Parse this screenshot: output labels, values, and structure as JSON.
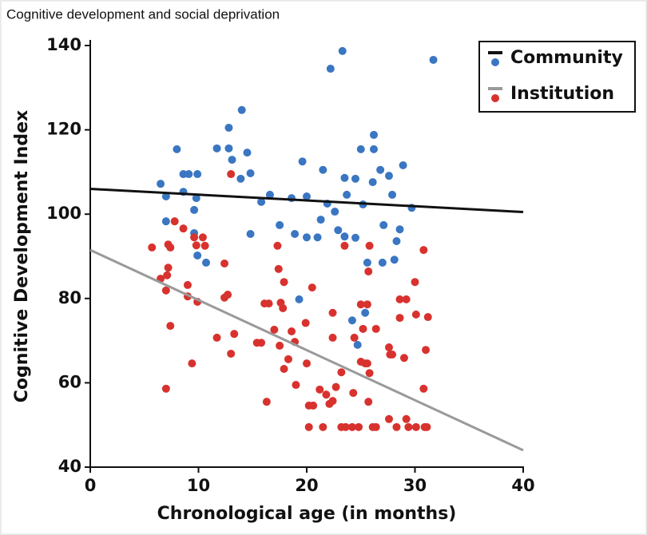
{
  "chart_data": {
    "type": "scatter",
    "title": "Cognitive development and social deprivation",
    "xlabel": "Chronological age (in months)",
    "ylabel": "Cognitive Development Index",
    "xlim": [
      0,
      40
    ],
    "ylim": [
      40,
      140
    ],
    "xticks": [
      0,
      10,
      20,
      30,
      40
    ],
    "yticks": [
      40,
      60,
      80,
      100,
      120,
      140
    ],
    "legend": "upper right",
    "series": [
      {
        "name": "Community",
        "color": "#3a76c2",
        "trend_color": "#111111",
        "trend_x": [
          0,
          40
        ],
        "trend_y": [
          106,
          100.5
        ],
        "x": [
          6.5,
          7.0,
          8.0,
          7.0,
          8.6,
          9.1,
          8.6,
          9.9,
          9.8,
          9.6,
          9.6,
          9.9,
          10.7,
          11.7,
          12.8,
          12.8,
          13.1,
          14.0,
          13.9,
          14.5,
          14.8,
          14.8,
          15.8,
          16.6,
          17.5,
          18.6,
          18.9,
          19.3,
          19.6,
          20.0,
          20.0,
          21.0,
          21.3,
          21.5,
          21.9,
          22.2,
          22.6,
          22.9,
          23.3,
          23.5,
          23.5,
          23.7,
          24.2,
          24.5,
          24.5,
          24.7,
          25.0,
          25.2,
          25.4,
          25.6,
          26.1,
          26.2,
          26.2,
          26.8,
          27.0,
          27.1,
          27.6,
          27.9,
          28.1,
          28.3,
          28.6,
          28.9,
          29.7,
          31.7
        ],
        "values": [
          107.2,
          104.2,
          115.4,
          98.3,
          109.5,
          109.5,
          105.3,
          109.5,
          103.8,
          101.0,
          95.5,
          90.2,
          88.5,
          115.6,
          115.6,
          120.5,
          112.9,
          124.7,
          108.4,
          114.6,
          109.7,
          95.3,
          102.9,
          104.6,
          97.4,
          103.8,
          95.3,
          79.8,
          112.5,
          104.2,
          94.5,
          94.5,
          98.7,
          110.5,
          102.5,
          134.5,
          100.6,
          96.2,
          138.7,
          108.6,
          94.7,
          104.6,
          74.8,
          94.4,
          108.4,
          69.0,
          115.4,
          102.3,
          76.6,
          88.5,
          107.6,
          118.8,
          115.4,
          110.5,
          88.5,
          97.4,
          109.1,
          104.6,
          89.2,
          93.6,
          96.4,
          111.6,
          101.5,
          136.6
        ]
      },
      {
        "name": "Institution",
        "color": "#d8322e",
        "trend_color": "#9a9a9a",
        "trend_x": [
          0,
          40
        ],
        "trend_y": [
          91.5,
          44
        ],
        "x": [
          5.7,
          6.5,
          7.0,
          7.1,
          7.2,
          7.2,
          7.4,
          7.0,
          7.4,
          7.8,
          8.6,
          9.0,
          9.0,
          9.4,
          9.6,
          9.8,
          9.9,
          10.4,
          10.6,
          11.7,
          12.4,
          12.4,
          12.7,
          13.0,
          13.0,
          13.3,
          15.4,
          15.8,
          16.1,
          16.3,
          16.5,
          17.0,
          17.3,
          17.4,
          17.6,
          17.5,
          17.9,
          17.8,
          17.9,
          18.3,
          18.6,
          18.9,
          19.0,
          19.9,
          20.0,
          20.2,
          20.2,
          20.5,
          20.6,
          21.2,
          21.5,
          21.8,
          22.1,
          22.4,
          22.4,
          22.4,
          22.7,
          23.2,
          23.2,
          23.6,
          23.5,
          24.3,
          24.4,
          24.2,
          24.8,
          25.0,
          25.0,
          25.2,
          25.4,
          25.6,
          25.7,
          25.8,
          25.6,
          25.8,
          25.7,
          26.1,
          26.4,
          26.4,
          27.6,
          27.7,
          27.6,
          27.9,
          28.3,
          28.6,
          28.6,
          29.0,
          29.2,
          29.2,
          29.4,
          30.0,
          30.1,
          30.1,
          30.8,
          30.9,
          30.8,
          31.0,
          31.1,
          31.2
        ],
        "values": [
          92.1,
          84.7,
          81.9,
          85.5,
          87.3,
          92.8,
          92.1,
          58.6,
          73.5,
          98.3,
          96.6,
          83.2,
          80.5,
          64.6,
          94.5,
          92.6,
          79.2,
          94.5,
          92.5,
          70.7,
          88.3,
          80.2,
          80.9,
          109.5,
          66.9,
          71.6,
          69.5,
          69.5,
          78.8,
          55.5,
          78.8,
          72.6,
          92.5,
          87.0,
          79.0,
          68.8,
          83.9,
          77.7,
          63.3,
          65.6,
          72.2,
          69.7,
          59.5,
          74.2,
          64.6,
          54.6,
          49.5,
          82.6,
          54.6,
          58.4,
          49.5,
          57.2,
          55.0,
          76.6,
          55.7,
          70.7,
          59.0,
          62.5,
          49.5,
          49.5,
          92.5,
          57.6,
          70.7,
          49.5,
          49.5,
          78.6,
          65.0,
          72.8,
          64.6,
          78.6,
          86.4,
          92.5,
          64.6,
          62.3,
          55.5,
          49.5,
          49.5,
          72.8,
          68.4,
          66.7,
          51.4,
          66.7,
          49.5,
          79.8,
          75.4,
          65.9,
          79.8,
          51.4,
          49.5,
          83.9,
          76.2,
          49.5,
          91.5,
          49.5,
          58.6,
          67.8,
          49.5,
          75.6
        ]
      }
    ]
  }
}
